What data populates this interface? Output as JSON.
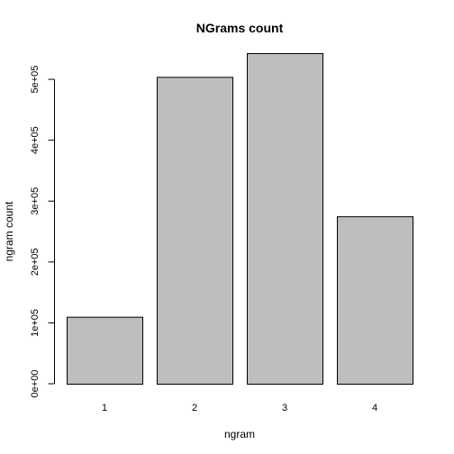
{
  "chart_data": {
    "type": "bar",
    "title": "NGrams count",
    "xlabel": "ngram",
    "ylabel": "ngram count",
    "categories": [
      "1",
      "2",
      "3",
      "4"
    ],
    "values": [
      110000,
      504000,
      543000,
      275000
    ],
    "ylim": [
      0,
      543000
    ],
    "yticks": [
      0,
      100000,
      200000,
      300000,
      400000,
      500000
    ],
    "ytick_labels": [
      "0e+00",
      "1e+05",
      "2e+05",
      "3e+05",
      "4e+05",
      "5e+05"
    ],
    "bar_color": "#bebebe",
    "grid": false
  }
}
